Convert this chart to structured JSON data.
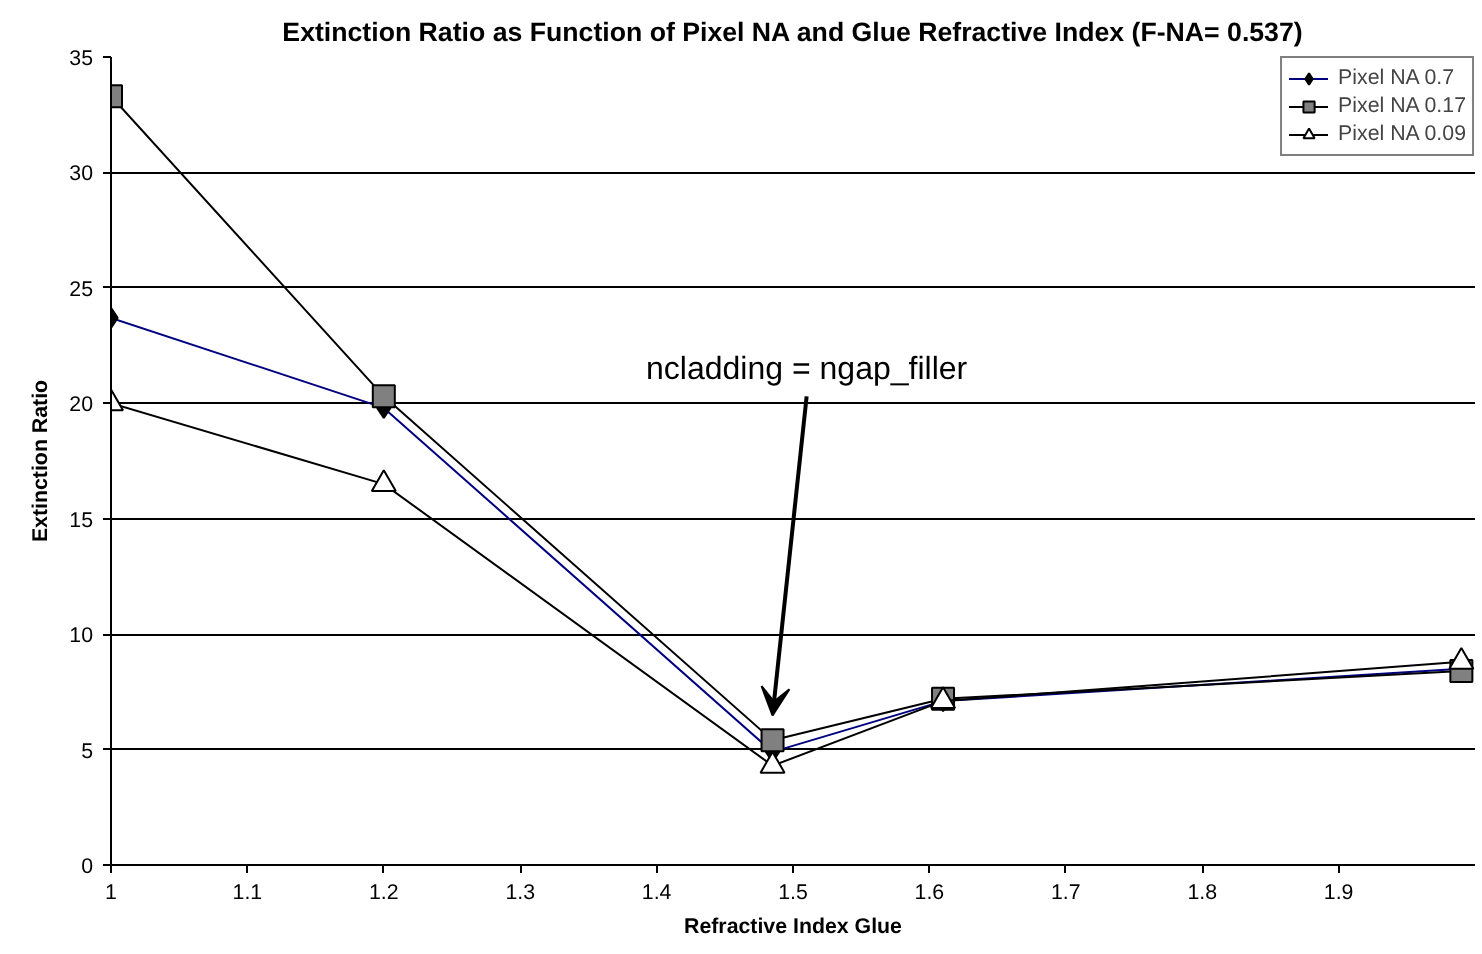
{
  "chart_data": {
    "type": "line",
    "title": "Extinction Ratio as Function of Pixel NA and Glue Refractive Index (F-NA= 0.537)",
    "xlabel": "Refractive Index Glue",
    "ylabel": "Extinction Ratio",
    "x": [
      1,
      1.2,
      1.485,
      1.61,
      1.99
    ],
    "series": [
      {
        "name": "Pixel NA 0.7",
        "color": "#000080",
        "marker": "diamond",
        "values": [
          23.7,
          19.8,
          4.9,
          7.1,
          8.5
        ]
      },
      {
        "name": "Pixel NA 0.17",
        "color": "#000000",
        "marker": "square",
        "values": [
          33.3,
          20.3,
          5.4,
          7.2,
          8.4
        ]
      },
      {
        "name": "Pixel NA 0.09",
        "color": "#000000",
        "marker": "triangle",
        "values": [
          20.0,
          16.5,
          4.3,
          7.1,
          8.8
        ]
      }
    ],
    "xlim": [
      1,
      2.0
    ],
    "xticks": [
      1,
      1.1,
      1.2,
      1.3,
      1.4,
      1.5,
      1.6,
      1.7,
      1.8,
      1.9
    ],
    "ylim": [
      0,
      35
    ],
    "yticks": [
      0,
      5,
      10,
      15,
      20,
      25,
      30,
      35
    ],
    "grid": "y",
    "legend": "top right",
    "annotations": [
      "ncladding = ngap_filler"
    ]
  }
}
